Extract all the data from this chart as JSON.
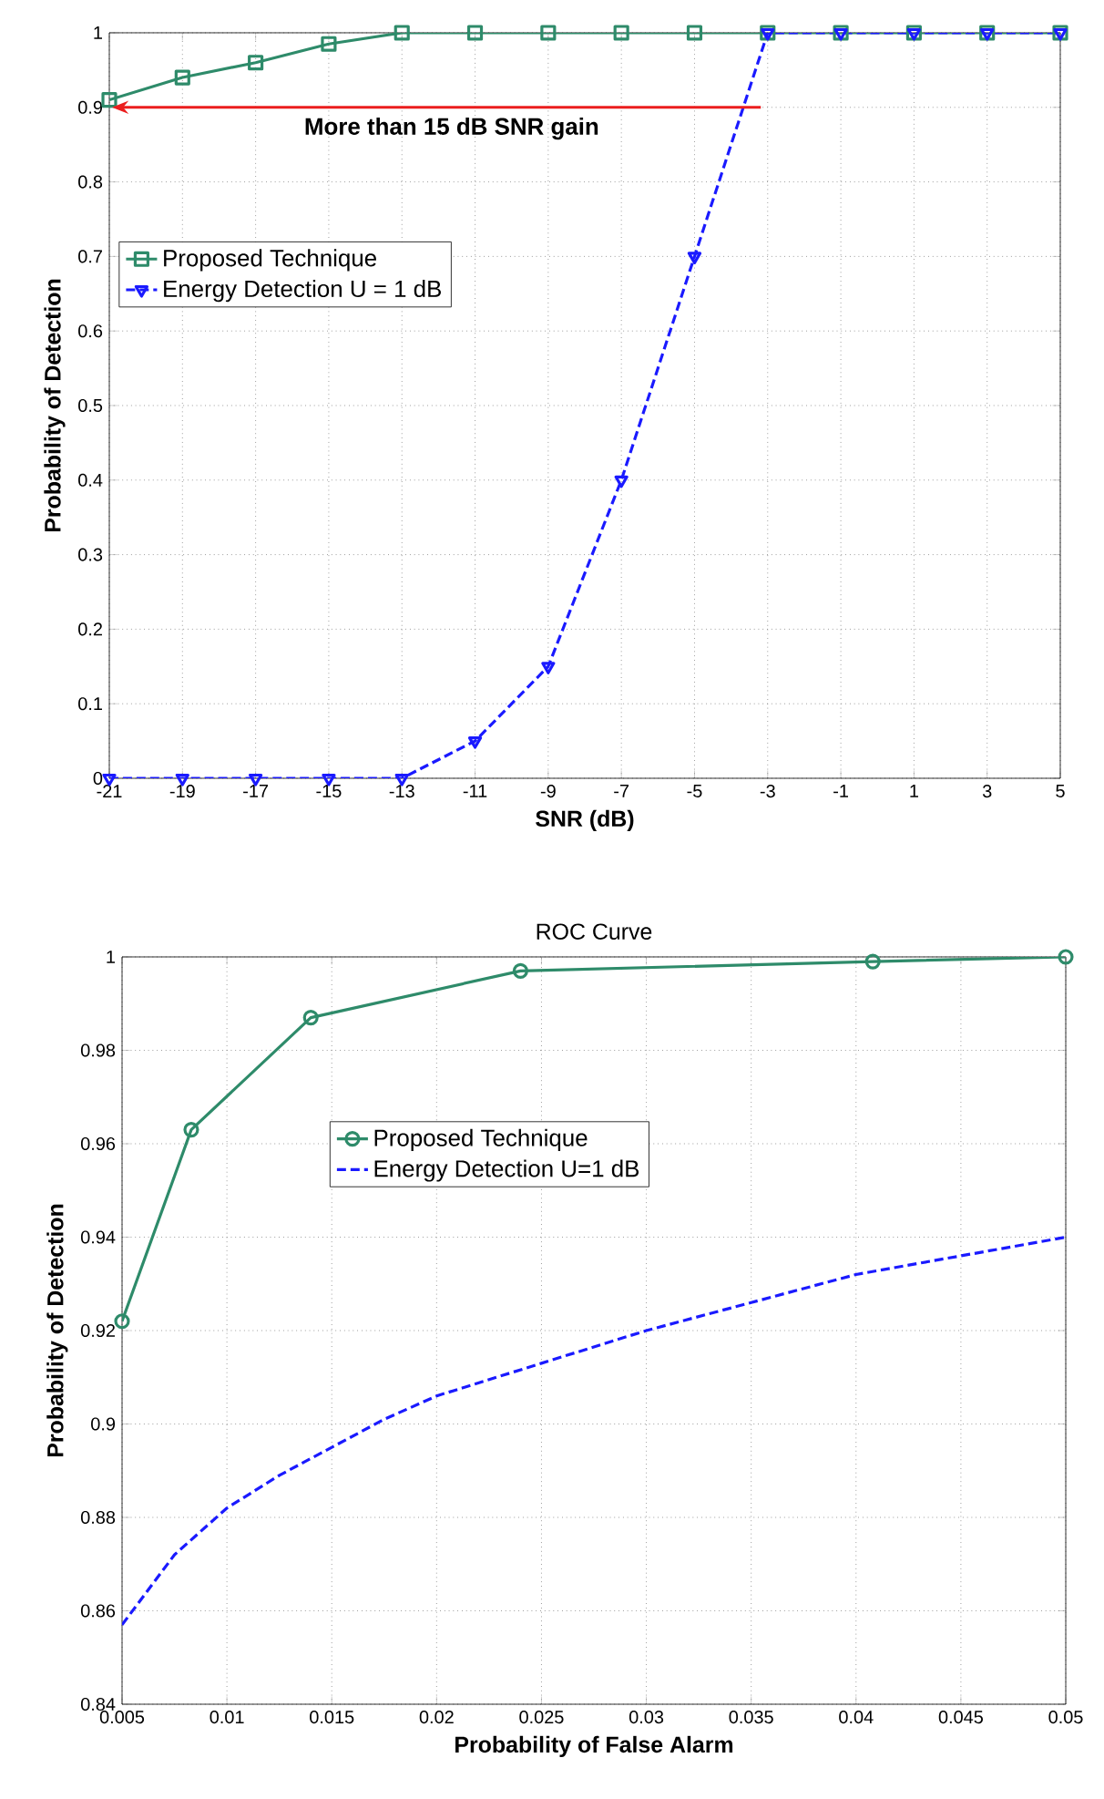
{
  "chart_data": [
    {
      "type": "line",
      "xlabel": "SNR (dB)",
      "ylabel": "Probability of Detection",
      "x": [
        -21,
        -19,
        -17,
        -15,
        -13,
        -11,
        -9,
        -7,
        -5,
        -3,
        -1,
        1,
        3,
        5
      ],
      "series": [
        {
          "name": "Proposed Technique",
          "color": "#2e8b6a",
          "marker": "square",
          "line_style": "solid",
          "values": [
            0.91,
            0.94,
            0.96,
            0.985,
            1,
            1,
            1,
            1,
            1,
            1,
            1,
            1,
            1,
            1
          ]
        },
        {
          "name": "Energy Detection U = 1 dB",
          "color": "#1a1aff",
          "marker": "triangle",
          "line_style": "dashed",
          "values": [
            0,
            0,
            0,
            0,
            0,
            0.05,
            0.15,
            0.4,
            0.7,
            1,
            1,
            1,
            1,
            1
          ]
        }
      ],
      "xlim": [
        -21,
        5
      ],
      "xticks": [
        -21,
        -19,
        -17,
        -15,
        -13,
        -11,
        -9,
        -7,
        -5,
        -3,
        -1,
        1,
        3,
        5
      ],
      "ylim": [
        0,
        1
      ],
      "yticks": [
        0,
        0.1,
        0.2,
        0.3,
        0.4,
        0.5,
        0.6,
        0.7,
        0.8,
        0.9,
        1
      ],
      "annotations": [
        "More than 15 dB SNR gain"
      ],
      "grid": true,
      "legend": "left"
    },
    {
      "type": "line",
      "title": "ROC Curve",
      "xlabel": "Probability of False Alarm",
      "ylabel": "Probability of Detection",
      "series": [
        {
          "name": "Proposed Technique",
          "color": "#2e8b6a",
          "marker": "circle",
          "line_style": "solid",
          "x": [
            0.005,
            0.0083,
            0.014,
            0.024,
            0.0408,
            0.05
          ],
          "values": [
            0.922,
            0.963,
            0.987,
            0.997,
            0.999,
            1
          ]
        },
        {
          "name": "Energy Detection U=1 dB",
          "color": "#1a1aff",
          "marker": "none",
          "line_style": "dashed",
          "x": [
            0.005,
            0.0075,
            0.01,
            0.0125,
            0.015,
            0.0175,
            0.02,
            0.025,
            0.03,
            0.035,
            0.04,
            0.045,
            0.05
          ],
          "values": [
            0.857,
            0.872,
            0.882,
            0.889,
            0.895,
            0.901,
            0.906,
            0.913,
            0.92,
            0.926,
            0.932,
            0.936,
            0.94
          ]
        }
      ],
      "xlim": [
        0.005,
        0.05
      ],
      "xticks": [
        0.005,
        0.01,
        0.015,
        0.02,
        0.025,
        0.03,
        0.035,
        0.04,
        0.045,
        0.05
      ],
      "ylim": [
        0.84,
        1
      ],
      "yticks": [
        0.84,
        0.86,
        0.88,
        0.9,
        0.92,
        0.94,
        0.96,
        0.98,
        1
      ],
      "grid": true,
      "legend": "top"
    }
  ]
}
